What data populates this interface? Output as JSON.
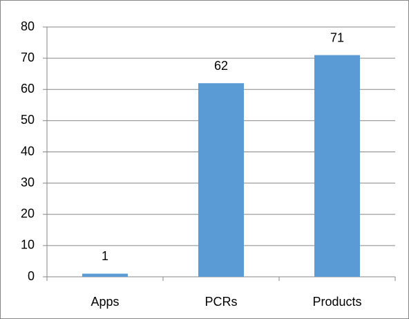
{
  "chart_data": {
    "type": "bar",
    "categories": [
      "Apps",
      "PCRs",
      "Products"
    ],
    "values": [
      1,
      62,
      71
    ],
    "color": "#5b9bd5",
    "ylim": [
      0,
      80
    ],
    "yticks": [
      0,
      10,
      20,
      30,
      40,
      50,
      60,
      70,
      80
    ],
    "grid": true,
    "data_labels": true
  }
}
